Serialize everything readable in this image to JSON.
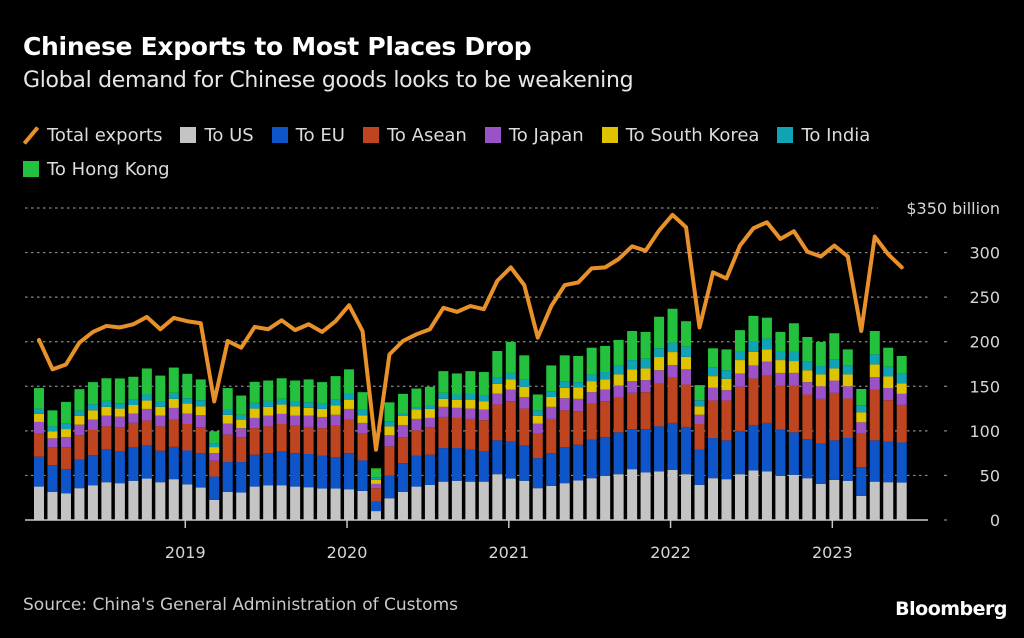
{
  "title": "Chinese Exports to Most Places Drop",
  "subtitle": "Global demand for Chinese goods looks to be weakening",
  "source": "Source: China's General Administration of Customs",
  "brand": "Bloomberg",
  "legend": [
    {
      "label": "Total exports",
      "kind": "line",
      "color": "#e8902a",
      "icon": "line-swatch-icon"
    },
    {
      "label": "To US",
      "kind": "bar",
      "color": "#c4c4c4",
      "icon": "square-swatch-icon"
    },
    {
      "label": "To EU",
      "kind": "bar",
      "color": "#0d55c9",
      "icon": "square-swatch-icon"
    },
    {
      "label": "To Asean",
      "kind": "bar",
      "color": "#bf4420",
      "icon": "square-swatch-icon"
    },
    {
      "label": "To Japan",
      "kind": "bar",
      "color": "#9a52c6",
      "icon": "square-swatch-icon"
    },
    {
      "label": "To South Korea",
      "kind": "bar",
      "color": "#e0c300",
      "icon": "square-swatch-icon"
    },
    {
      "label": "To India",
      "kind": "bar",
      "color": "#0fa3b5",
      "icon": "square-swatch-icon"
    },
    {
      "label": "To Hong Kong",
      "kind": "bar",
      "color": "#23c13d",
      "icon": "square-swatch-icon"
    }
  ],
  "chart_data": {
    "type": "bar",
    "stacked": true,
    "title": "Chinese Exports to Most Places Drop",
    "subtitle": "Global demand for Chinese goods looks to be weakening",
    "xlabel": "",
    "ylabel": "$ billion",
    "ylim": [
      0,
      350
    ],
    "yticks": [
      0,
      50,
      100,
      150,
      200,
      250,
      300,
      350
    ],
    "ytick_labels": [
      "0",
      "50",
      "100",
      "150",
      "200",
      "250",
      "300",
      "$350 billion"
    ],
    "xtick_labels": [
      "2019",
      "2020",
      "2021",
      "2022",
      "2023"
    ],
    "grid": true,
    "legend_position": "top",
    "categories": [
      "2018-01",
      "2018-02",
      "2018-03",
      "2018-04",
      "2018-05",
      "2018-06",
      "2018-07",
      "2018-08",
      "2018-09",
      "2018-10",
      "2018-11",
      "2018-12",
      "2019-01",
      "2019-02",
      "2019-03",
      "2019-04",
      "2019-05",
      "2019-06",
      "2019-07",
      "2019-08",
      "2019-09",
      "2019-10",
      "2019-11",
      "2019-12",
      "2020-01",
      "2020-02",
      "2020-03",
      "2020-04",
      "2020-05",
      "2020-06",
      "2020-07",
      "2020-08",
      "2020-09",
      "2020-10",
      "2020-11",
      "2020-12",
      "2021-01",
      "2021-02",
      "2021-03",
      "2021-04",
      "2021-05",
      "2021-06",
      "2021-07",
      "2021-08",
      "2021-09",
      "2021-10",
      "2021-11",
      "2021-12",
      "2022-01",
      "2022-02",
      "2022-03",
      "2022-04",
      "2022-05",
      "2022-06",
      "2022-07",
      "2022-08",
      "2022-09",
      "2022-10",
      "2022-11",
      "2022-12",
      "2023-01",
      "2023-02",
      "2023-03",
      "2023-04",
      "2023-05"
    ],
    "series": [
      {
        "name": "To US",
        "type": "bar",
        "color": "#c4c4c4",
        "values": [
          37.5,
          31.5,
          30,
          35.7,
          39,
          42.4,
          41.3,
          44,
          46.5,
          42.4,
          45.8,
          40,
          36.4,
          22.5,
          31.5,
          30.8,
          37.5,
          39,
          39,
          37.5,
          36.8,
          35.3,
          35.3,
          34.5,
          32.7,
          10,
          24.4,
          31.5,
          37.5,
          39.4,
          43,
          44,
          43,
          43,
          51.4,
          46.5,
          44,
          35.7,
          38.3,
          41.3,
          44.3,
          46.9,
          49.5,
          51.4,
          57,
          53.3,
          54.4,
          56.3,
          51.4,
          39.4,
          46.9,
          45.8,
          51.4,
          55.6,
          54.4,
          49.5,
          50.7,
          46.9,
          40.5,
          45,
          44,
          27,
          43,
          42.4,
          42
        ]
      },
      {
        "name": "To EU",
        "type": "bar",
        "color": "#0d55c9",
        "values": [
          33.5,
          30.1,
          27,
          31.9,
          33.8,
          37.2,
          35.7,
          37.5,
          37.2,
          35.3,
          36.2,
          38,
          38.6,
          26.3,
          33.5,
          34.2,
          35.7,
          36,
          38,
          37.5,
          37.2,
          36.7,
          35.3,
          40.5,
          34.1,
          10.6,
          25.6,
          32.3,
          34.5,
          33.8,
          37.7,
          36.7,
          35.8,
          34,
          37.9,
          41.7,
          39.7,
          33.7,
          36.7,
          40.5,
          40.2,
          43.1,
          43.5,
          46.9,
          45,
          48.7,
          50.6,
          52.6,
          53,
          39.4,
          45,
          43.5,
          48.6,
          51,
          54.5,
          51.9,
          47.6,
          43.9,
          45.1,
          44.3,
          48,
          32.3,
          46.3,
          45.6,
          45
        ]
      },
      {
        "name": "To Asean",
        "type": "bar",
        "color": "#bf4420",
        "values": [
          26.6,
          20.2,
          24.8,
          27.4,
          28.2,
          25.4,
          27,
          27.5,
          27.8,
          27.3,
          30.6,
          29.7,
          29,
          17.6,
          30.7,
          28,
          29.8,
          30,
          30.7,
          30.9,
          30.4,
          31,
          35.3,
          37.6,
          30,
          15.1,
          32.6,
          29.2,
          28.6,
          30.8,
          34.9,
          33.8,
          34.6,
          35,
          40.2,
          45.1,
          41.3,
          28.2,
          38.4,
          41.2,
          37.5,
          40.6,
          40.3,
          39.7,
          40.6,
          41.4,
          48,
          50.6,
          47.6,
          28.9,
          42.1,
          44.7,
          49.4,
          52.2,
          53.1,
          49.5,
          52.6,
          50,
          50.3,
          53.3,
          44.3,
          38.3,
          57.1,
          46.4,
          42.1
        ]
      },
      {
        "name": "To Japan",
        "type": "bar",
        "color": "#9a52c6",
        "values": [
          12.4,
          9.8,
          11.2,
          12,
          11.6,
          12,
          12,
          10.4,
          13.1,
          12,
          13.1,
          11.7,
          13.5,
          8.6,
          12.3,
          10,
          11.5,
          12,
          11.3,
          11.1,
          12.6,
          12.6,
          12.1,
          12,
          12.1,
          4.8,
          12.4,
          13.6,
          12.8,
          10.5,
          11.3,
          11.3,
          11.6,
          11.9,
          12.4,
          13.1,
          13,
          10.4,
          13.5,
          13.6,
          13.9,
          12.8,
          13.1,
          12.9,
          13.2,
          13.5,
          15,
          14.3,
          17,
          10.3,
          14.3,
          11.6,
          15,
          14.6,
          15.6,
          14.1,
          14.1,
          13.9,
          14.1,
          13.9,
          13.7,
          12,
          13.9,
          13.6,
          12.4
        ]
      },
      {
        "name": "To South Korea",
        "type": "bar",
        "color": "#e0c300",
        "values": [
          9,
          7.9,
          9,
          10,
          10.4,
          10,
          9,
          9.6,
          9.4,
          10,
          10.3,
          11.2,
          10.1,
          6.8,
          10,
          9.6,
          10.5,
          9.9,
          10.5,
          10.6,
          8.8,
          9,
          10.4,
          10.4,
          8.6,
          4.5,
          10,
          10.4,
          10.5,
          10.1,
          9.1,
          9.2,
          10,
          9.4,
          10.9,
          11.3,
          11.4,
          9,
          11.1,
          11.7,
          12.7,
          12.4,
          11.3,
          12.4,
          13.2,
          13.1,
          14.8,
          14.6,
          14,
          9.6,
          13.1,
          12.8,
          15,
          15.3,
          13.8,
          14.4,
          13.3,
          13.3,
          13.3,
          13.5,
          13.3,
          11.3,
          14.3,
          13,
          11.7
        ]
      },
      {
        "name": "To India",
        "type": "bar",
        "color": "#0fa3b5",
        "values": [
          6,
          5.5,
          6,
          5.7,
          7,
          6.6,
          6,
          6,
          6.8,
          6,
          6.6,
          6,
          6.8,
          4.5,
          6,
          5.4,
          6.4,
          6.7,
          6.4,
          5.3,
          6.2,
          6,
          6.6,
          6.9,
          6.4,
          3,
          5.7,
          3,
          1.9,
          3.8,
          6.6,
          5.8,
          6.9,
          6.3,
          6.7,
          7.3,
          8.3,
          6,
          6.5,
          7.5,
          6.1,
          7.5,
          8.3,
          10.1,
          10.4,
          11,
          9.8,
          10.6,
          11.4,
          6.8,
          9.4,
          9.6,
          10.2,
          12.1,
          12.1,
          10.2,
          11.3,
          10.3,
          9.4,
          10.2,
          10.5,
          7.9,
          11.2,
          11,
          10.8
        ]
      },
      {
        "name": "To Hong Kong",
        "type": "bar",
        "color": "#23c13d",
        "values": [
          23,
          18,
          24.5,
          24.1,
          24.7,
          25.4,
          27.8,
          25.7,
          29.2,
          29,
          28.4,
          27.4,
          23.3,
          13.2,
          24,
          21.6,
          23.6,
          22.9,
          23.1,
          23.6,
          25.7,
          24.1,
          26.4,
          27.1,
          19.5,
          10,
          21.3,
          21.5,
          21.7,
          21,
          24.4,
          23.6,
          25.1,
          26.4,
          30.1,
          34.7,
          27,
          17.8,
          28.9,
          28.9,
          29.3,
          30,
          29.2,
          28.6,
          32.6,
          30,
          35.4,
          38,
          28.6,
          16.9,
          21.8,
          23.4,
          23.4,
          28.2,
          23.5,
          21.4,
          31.1,
          27,
          27,
          29.3,
          17.6,
          18.2,
          26.2,
          21.3,
          20
        ]
      },
      {
        "name": "Total exports",
        "type": "line",
        "color": "#e8902a",
        "values": [
          202,
          169,
          174.5,
          199,
          211,
          217.7,
          216,
          219.6,
          227.8,
          214,
          226.7,
          223,
          220.7,
          133,
          200.8,
          193.3,
          216.6,
          214,
          224,
          213,
          219.6,
          211,
          223,
          240.9,
          212,
          78.8,
          185.8,
          200.8,
          208.3,
          214,
          238,
          233.5,
          240,
          236.5,
          268.4,
          283.4,
          263.5,
          204.6,
          240,
          263.5,
          266.5,
          282.3,
          283.4,
          292.8,
          307,
          302,
          324.7,
          342.3,
          328.4,
          216,
          277.8,
          271,
          307.8,
          327.3,
          334,
          315.3,
          324,
          301,
          295.6,
          307.8,
          295.6,
          212,
          318,
          298,
          283.4
        ]
      }
    ]
  }
}
